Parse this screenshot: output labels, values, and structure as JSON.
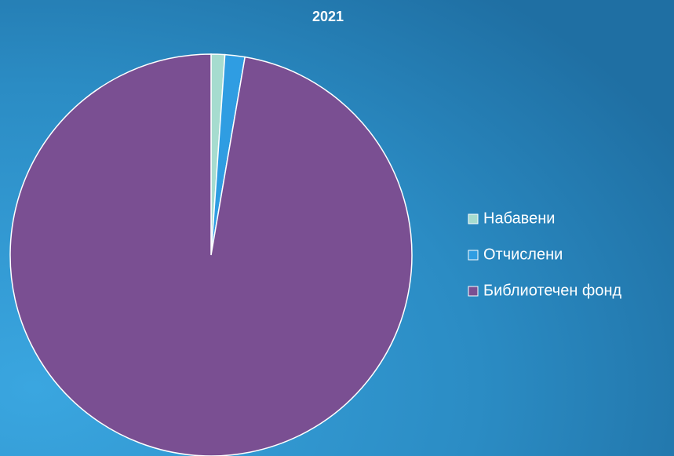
{
  "chart_data": {
    "type": "pie",
    "title": "2021",
    "categories": [
      "Набавени",
      "Отчислени",
      "Библиотечен фонд"
    ],
    "values": [
      1.1,
      1.6,
      97.3
    ],
    "colors": [
      "#a6dccf",
      "#2f9de2",
      "#7a4f92"
    ]
  }
}
